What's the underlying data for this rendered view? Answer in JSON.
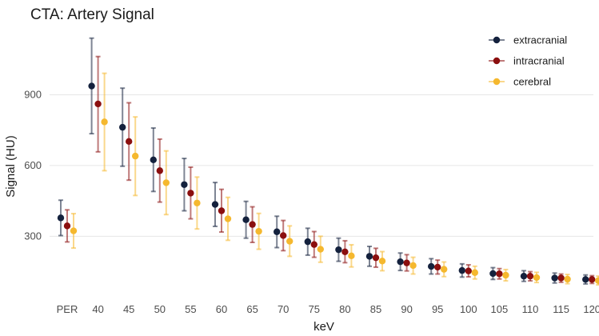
{
  "chart_data": {
    "type": "scatter",
    "title": "CTA: Artery Signal",
    "xlabel": "keV",
    "ylabel": "Signal (HU)",
    "categories": [
      "PER",
      "40",
      "45",
      "50",
      "55",
      "60",
      "65",
      "70",
      "75",
      "80",
      "85",
      "90",
      "95",
      "100",
      "105",
      "110",
      "115",
      "120"
    ],
    "ylim": [
      40,
      1200
    ],
    "yticks": [
      300,
      600,
      900
    ],
    "grid": true,
    "legend_position": "top-right",
    "error_bars": true,
    "series": [
      {
        "name": "extracranial",
        "color": "#14213d",
        "values": [
          378,
          937,
          762,
          624,
          519,
          435,
          370,
          319,
          277,
          243,
          215,
          192,
          172,
          155,
          142,
          131,
          123,
          117
        ],
        "low": [
          303,
          735,
          597,
          490,
          408,
          342,
          292,
          252,
          220,
          194,
          173,
          155,
          140,
          127,
          117,
          109,
          102,
          98
        ],
        "high": [
          453,
          1140,
          928,
          759,
          630,
          528,
          448,
          385,
          334,
          292,
          257,
          229,
          205,
          183,
          167,
          154,
          144,
          136
        ]
      },
      {
        "name": "intracranial",
        "color": "#8b0f0f",
        "values": [
          344,
          861,
          702,
          578,
          483,
          408,
          350,
          303,
          265,
          234,
          209,
          187,
          169,
          153,
          141,
          131,
          123,
          117
        ],
        "low": [
          276,
          658,
          538,
          445,
          374,
          318,
          274,
          239,
          211,
          188,
          169,
          153,
          140,
          128,
          119,
          111,
          105,
          100
        ],
        "high": [
          412,
          1062,
          866,
          712,
          593,
          499,
          425,
          367,
          320,
          281,
          249,
          222,
          199,
          179,
          163,
          150,
          140,
          133
        ]
      },
      {
        "name": "cerebral",
        "color": "#f5b82e",
        "values": [
          323,
          785,
          640,
          527,
          441,
          374,
          321,
          279,
          245,
          217,
          195,
          176,
          160,
          146,
          135,
          125,
          118,
          112
        ],
        "low": [
          250,
          578,
          473,
          392,
          331,
          283,
          245,
          215,
          190,
          170,
          154,
          140,
          129,
          119,
          111,
          104,
          99,
          94
        ],
        "high": [
          396,
          991,
          806,
          662,
          551,
          465,
          397,
          344,
          300,
          264,
          235,
          211,
          191,
          173,
          159,
          147,
          138,
          131
        ]
      }
    ]
  }
}
